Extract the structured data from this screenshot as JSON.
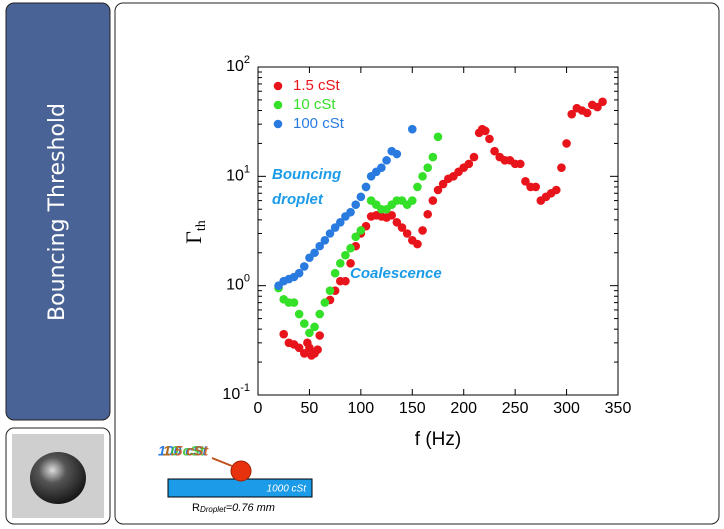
{
  "slide": {
    "title": "Bouncing Threshold"
  },
  "schematic": {
    "droplet_labels": [
      "1.5 cSt",
      "10 cSt",
      "100 cSt"
    ],
    "bath_label": "1000 cSt",
    "radius_prefix": "R",
    "radius_sub": "Droplet",
    "radius_value": "=0.76 mm"
  },
  "chart_data": {
    "type": "scatter",
    "xlabel": "f (Hz)",
    "ylabel": "Γ",
    "ylabel_sub": "th",
    "xlim": [
      0,
      350
    ],
    "xticks": [
      0,
      50,
      100,
      150,
      200,
      250,
      300,
      350
    ],
    "ylim": [
      0.1,
      100
    ],
    "log_y": true,
    "yticks": [
      {
        "value": 0.1,
        "label": "10",
        "exponent": "-1"
      },
      {
        "value": 1,
        "label": "10",
        "exponent": "0"
      },
      {
        "value": 10,
        "label": "10",
        "exponent": "1"
      },
      {
        "value": 100,
        "label": "10",
        "exponent": "2"
      }
    ],
    "legend": "upper-left",
    "annotations": [
      "Bouncing",
      "droplet",
      "Coalescence"
    ],
    "series": [
      {
        "name": "1.5 cSt",
        "color": "#e8141b",
        "x": [
          25,
          30,
          35,
          40,
          45,
          48,
          50,
          52,
          55,
          58,
          60,
          70,
          75,
          80,
          85,
          90,
          95,
          100,
          105,
          110,
          115,
          120,
          125,
          130,
          135,
          140,
          145,
          150,
          155,
          160,
          165,
          170,
          175,
          180,
          185,
          190,
          195,
          200,
          205,
          210,
          215,
          218,
          221,
          225,
          230,
          235,
          240,
          245,
          250,
          255,
          260,
          265,
          270,
          275,
          280,
          285,
          290,
          295,
          300,
          305,
          310,
          315,
          320,
          325,
          330,
          335
        ],
        "values": [
          0.36,
          0.3,
          0.29,
          0.27,
          0.24,
          0.3,
          0.27,
          0.23,
          0.24,
          0.26,
          0.35,
          0.74,
          0.9,
          1.1,
          1.1,
          1.6,
          2.3,
          3.0,
          3.5,
          4.3,
          4.4,
          4.3,
          4.2,
          4.4,
          3.8,
          3.4,
          3.0,
          2.6,
          2.4,
          3.2,
          4.5,
          6.0,
          7.5,
          8.5,
          9.5,
          10,
          11,
          12,
          13,
          15,
          25,
          27,
          26,
          22,
          17,
          15,
          14,
          14,
          13,
          13,
          9,
          8,
          8,
          6,
          6.5,
          7,
          7.5,
          12,
          20,
          37,
          42,
          40,
          38,
          45,
          43,
          48
        ]
      },
      {
        "name": "10 cSt",
        "color": "#35e028",
        "x": [
          20,
          25,
          30,
          35,
          40,
          45,
          50,
          55,
          60,
          65,
          70,
          75,
          80,
          85,
          90,
          95,
          100,
          105,
          110,
          115,
          120,
          125,
          130,
          135,
          140,
          145,
          150,
          155,
          160,
          165,
          170,
          175
        ],
        "values": [
          0.95,
          0.75,
          0.7,
          0.7,
          0.55,
          0.45,
          0.37,
          0.42,
          0.55,
          0.7,
          0.9,
          1.3,
          1.6,
          1.9,
          2.2,
          2.8,
          3.2,
          8,
          6,
          5.5,
          5,
          5,
          5.5,
          6,
          6,
          5.5,
          6,
          8,
          10,
          12,
          15,
          23
        ]
      },
      {
        "name": "100 cSt",
        "color": "#2a7be0",
        "x": [
          20,
          25,
          30,
          35,
          40,
          45,
          50,
          55,
          60,
          65,
          70,
          75,
          80,
          85,
          90,
          95,
          100,
          105,
          110,
          115,
          120,
          125,
          130,
          135,
          150
        ],
        "values": [
          1.0,
          1.1,
          1.15,
          1.2,
          1.3,
          1.5,
          1.8,
          2.0,
          2.3,
          2.6,
          3.0,
          3.4,
          3.8,
          4.3,
          4.7,
          5.5,
          6.5,
          8,
          10,
          11,
          12,
          14,
          17,
          16,
          27
        ]
      }
    ]
  }
}
